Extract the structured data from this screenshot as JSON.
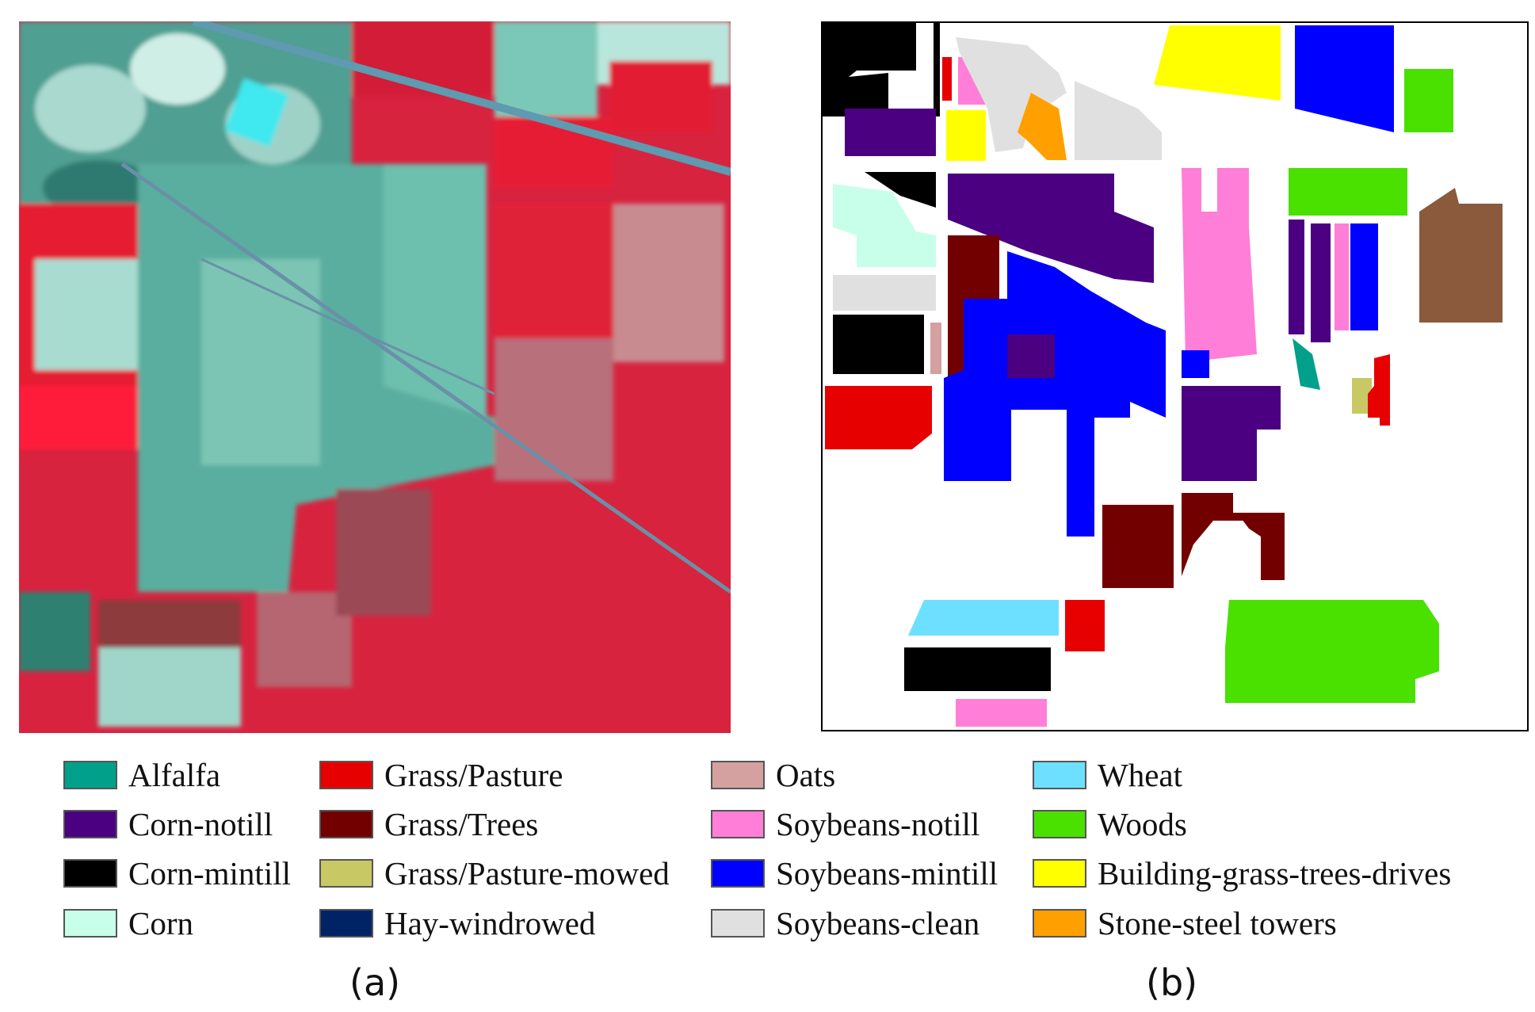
{
  "panels": {
    "a": {
      "caption": "(a)"
    },
    "b": {
      "caption": "(b)"
    }
  },
  "legend": {
    "columns": [
      [
        {
          "label": "Alfalfa",
          "color": "#00a08a"
        },
        {
          "label": "Corn-notill",
          "color": "#4b0082"
        },
        {
          "label": "Corn-mintill",
          "color": "#000000"
        },
        {
          "label": "Corn",
          "color": "#c8ffea"
        }
      ],
      [
        {
          "label": "Grass/Pasture",
          "color": "#e60000"
        },
        {
          "label": "Grass/Trees",
          "color": "#730000"
        },
        {
          "label": "Grass/Pasture-mowed",
          "color": "#c8c864"
        },
        {
          "label": "Hay-windrowed",
          "color": "#002366"
        }
      ],
      [
        {
          "label": "Oats",
          "color": "#d4a0a0"
        },
        {
          "label": "Soybeans-notill",
          "color": "#ff7ed7"
        },
        {
          "label": "Soybeans-mintill",
          "color": "#0000ff"
        },
        {
          "label": "Soybeans-clean",
          "color": "#e0e0e0"
        }
      ],
      [
        {
          "label": "Wheat",
          "color": "#6ee0ff"
        },
        {
          "label": "Woods",
          "color": "#4ae000"
        },
        {
          "label": "Building-grass-trees-drives",
          "color": "#ffff00"
        },
        {
          "label": "Stone-steel towers",
          "color": "#ffa000"
        }
      ]
    ]
  },
  "colors": {
    "vegetation_red": "#e8102e",
    "field_teal": "#5fb8a8",
    "light_field": "#a8dcd0",
    "road": "#6a90a8"
  }
}
